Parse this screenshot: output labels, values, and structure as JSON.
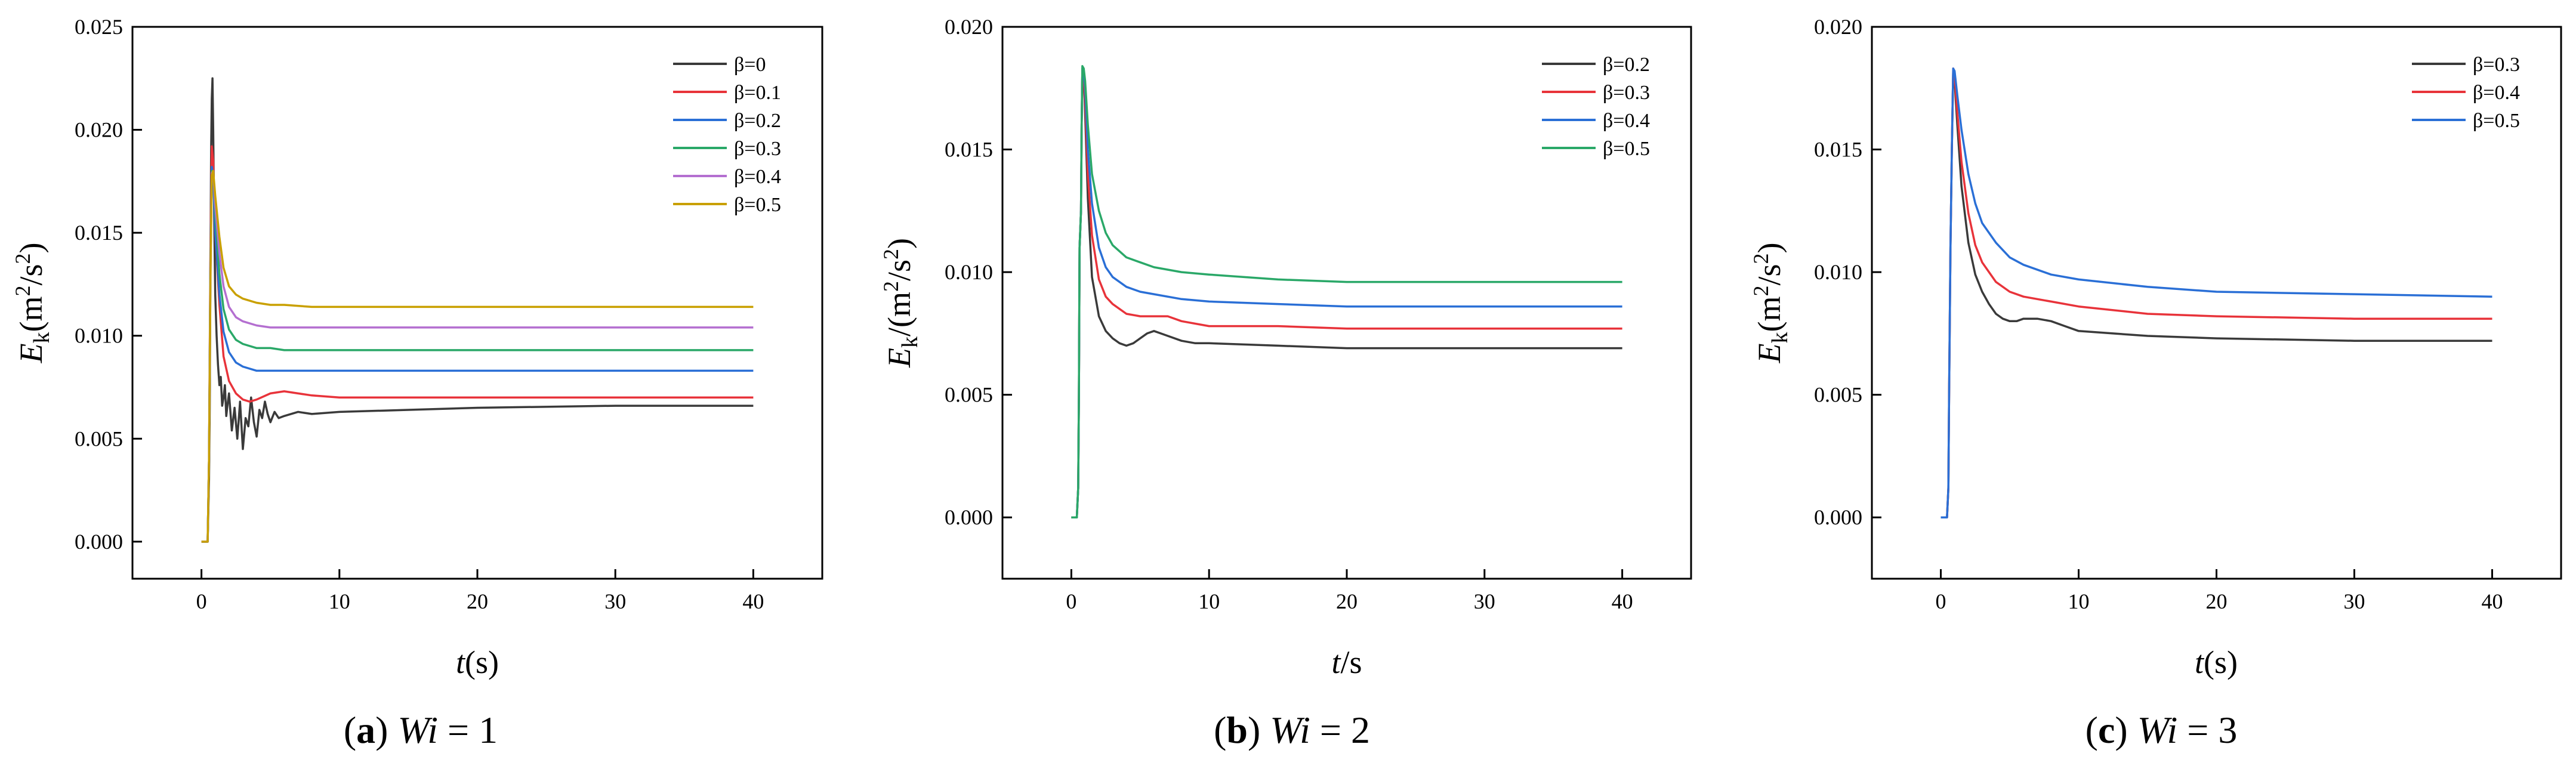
{
  "chart_data": [
    {
      "type": "line",
      "panel": "(a)",
      "caption_symbol": "Wi",
      "caption_value": "= 1",
      "xlabel_symbol": "t",
      "xlabel_rest": "(s)",
      "ylabel": "E_k(m^2/s^2)",
      "xlim": [
        -5,
        45
      ],
      "ylim": [
        -0.0018,
        0.025
      ],
      "xticks": [
        0,
        10,
        20,
        30,
        40
      ],
      "yticks": [
        0.0,
        0.005,
        0.01,
        0.015,
        0.02,
        0.025
      ],
      "ytick_labels": [
        "0.000",
        "0.005",
        "0.010",
        "0.015",
        "0.020",
        "0.025"
      ],
      "legend_position": "top-right",
      "series": [
        {
          "name": "β=0",
          "color": "#3a3a3a",
          "x": [
            0,
            0.45,
            0.55,
            0.6,
            0.65,
            0.7,
            0.75,
            0.8,
            0.85,
            0.9,
            1.0,
            1.1,
            1.2,
            1.3,
            1.4,
            1.5,
            1.6,
            1.7,
            1.8,
            1.9,
            2.0,
            2.2,
            2.4,
            2.6,
            2.8,
            3.0,
            3.2,
            3.4,
            3.6,
            3.8,
            4.0,
            4.2,
            4.4,
            4.6,
            4.8,
            5.0,
            5.3,
            5.6,
            6,
            7,
            8,
            10,
            15,
            20,
            30,
            40
          ],
          "y": [
            0,
            0,
            0.003,
            0.0065,
            0.013,
            0.019,
            0.0215,
            0.0225,
            0.02,
            0.017,
            0.012,
            0.01,
            0.0086,
            0.0076,
            0.008,
            0.0066,
            0.007,
            0.0076,
            0.0061,
            0.0067,
            0.0072,
            0.0054,
            0.0065,
            0.005,
            0.0068,
            0.0045,
            0.006,
            0.0056,
            0.007,
            0.0058,
            0.0051,
            0.0064,
            0.006,
            0.0068,
            0.0062,
            0.0058,
            0.0063,
            0.006,
            0.0061,
            0.0063,
            0.0062,
            0.0063,
            0.0064,
            0.0065,
            0.0066,
            0.0066
          ]
        },
        {
          "name": "β=0.1",
          "color": "#e8333a",
          "x": [
            0,
            0.45,
            0.55,
            0.65,
            0.75,
            0.85,
            1.0,
            1.3,
            1.6,
            2.0,
            2.5,
            3,
            3.5,
            4,
            5,
            6,
            7,
            8,
            10,
            15,
            20,
            30,
            40
          ],
          "y": [
            0,
            0,
            0.004,
            0.014,
            0.0192,
            0.0185,
            0.015,
            0.0115,
            0.009,
            0.0078,
            0.0072,
            0.0069,
            0.0068,
            0.0069,
            0.0072,
            0.0073,
            0.0072,
            0.0071,
            0.007,
            0.007,
            0.007,
            0.007,
            0.007
          ]
        },
        {
          "name": "β=0.2",
          "color": "#2a6fd6",
          "x": [
            0,
            0.45,
            0.55,
            0.65,
            0.75,
            0.85,
            1.0,
            1.3,
            1.6,
            2.0,
            2.5,
            3,
            4,
            5,
            6,
            8,
            10,
            15,
            20,
            30,
            40
          ],
          "y": [
            0,
            0,
            0.004,
            0.0135,
            0.0182,
            0.0178,
            0.015,
            0.012,
            0.0102,
            0.0092,
            0.0087,
            0.0085,
            0.0083,
            0.0083,
            0.0083,
            0.0083,
            0.0083,
            0.0083,
            0.0083,
            0.0083,
            0.0083
          ]
        },
        {
          "name": "β=0.3",
          "color": "#2aa868",
          "x": [
            0,
            0.45,
            0.55,
            0.65,
            0.75,
            0.85,
            1.0,
            1.3,
            1.6,
            2.0,
            2.5,
            3,
            4,
            5,
            6,
            8,
            10,
            15,
            20,
            30,
            40
          ],
          "y": [
            0,
            0,
            0.004,
            0.013,
            0.018,
            0.018,
            0.016,
            0.013,
            0.0113,
            0.0103,
            0.0098,
            0.0096,
            0.0094,
            0.0094,
            0.0093,
            0.0093,
            0.0093,
            0.0093,
            0.0093,
            0.0093,
            0.0093
          ]
        },
        {
          "name": "β=0.4",
          "color": "#b46fd0",
          "x": [
            0,
            0.45,
            0.55,
            0.65,
            0.75,
            0.85,
            1.0,
            1.3,
            1.6,
            2.0,
            2.5,
            3,
            4,
            5,
            6,
            8,
            10,
            15,
            20,
            30,
            40
          ],
          "y": [
            0,
            0,
            0.004,
            0.0128,
            0.0179,
            0.018,
            0.0163,
            0.014,
            0.0124,
            0.0114,
            0.0109,
            0.0107,
            0.0105,
            0.0104,
            0.0104,
            0.0104,
            0.0104,
            0.0104,
            0.0104,
            0.0104,
            0.0104
          ]
        },
        {
          "name": "β=0.5",
          "color": "#c9a000",
          "x": [
            0,
            0.45,
            0.55,
            0.65,
            0.75,
            0.85,
            1.0,
            1.3,
            1.6,
            2.0,
            2.5,
            3,
            4,
            5,
            6,
            8,
            10,
            15,
            20,
            30,
            40
          ],
          "y": [
            0,
            0,
            0.004,
            0.0125,
            0.0178,
            0.018,
            0.0168,
            0.0148,
            0.0133,
            0.0124,
            0.012,
            0.0118,
            0.0116,
            0.0115,
            0.0115,
            0.0114,
            0.0114,
            0.0114,
            0.0114,
            0.0114,
            0.0114
          ]
        }
      ]
    },
    {
      "type": "line",
      "panel": "(b)",
      "caption_symbol": "Wi",
      "caption_value": "= 2",
      "xlabel_symbol": "t",
      "xlabel_rest": "/s",
      "ylabel": "E_k/(m^2/s^2)",
      "xlim": [
        -5,
        45
      ],
      "ylim": [
        -0.0025,
        0.02
      ],
      "xticks": [
        0,
        10,
        20,
        30,
        40
      ],
      "yticks": [
        0.0,
        0.005,
        0.01,
        0.015,
        0.02
      ],
      "ytick_labels": [
        "0.000",
        "0.005",
        "0.010",
        "0.015",
        "0.020"
      ],
      "legend_position": "top-right",
      "series": [
        {
          "name": "β=0.2",
          "color": "#3a3a3a",
          "x": [
            0,
            0.4,
            0.5,
            0.55,
            0.6,
            0.7,
            0.75,
            0.8,
            0.9,
            1.0,
            1.2,
            1.5,
            2.0,
            2.5,
            3,
            3.5,
            4,
            4.5,
            5,
            5.5,
            6,
            6.5,
            7,
            8,
            9,
            10,
            15,
            20,
            30,
            40
          ],
          "y": [
            0,
            0,
            0.0012,
            0.005,
            0.011,
            0.0125,
            0.016,
            0.0183,
            0.018,
            0.0165,
            0.013,
            0.0098,
            0.0082,
            0.0076,
            0.0073,
            0.0071,
            0.007,
            0.0071,
            0.0073,
            0.0075,
            0.0076,
            0.0075,
            0.0074,
            0.0072,
            0.0071,
            0.0071,
            0.007,
            0.0069,
            0.0069,
            0.0069
          ]
        },
        {
          "name": "β=0.3",
          "color": "#e8333a",
          "x": [
            0,
            0.4,
            0.5,
            0.55,
            0.6,
            0.7,
            0.75,
            0.8,
            0.9,
            1.0,
            1.2,
            1.5,
            2.0,
            2.5,
            3,
            4,
            5,
            6,
            7,
            8,
            10,
            15,
            20,
            30,
            40
          ],
          "y": [
            0,
            0,
            0.0012,
            0.005,
            0.011,
            0.0125,
            0.016,
            0.0183,
            0.0181,
            0.017,
            0.014,
            0.0115,
            0.0097,
            0.009,
            0.0087,
            0.0083,
            0.0082,
            0.0082,
            0.0082,
            0.008,
            0.0078,
            0.0078,
            0.0077,
            0.0077,
            0.0077
          ]
        },
        {
          "name": "β=0.4",
          "color": "#2a6fd6",
          "x": [
            0,
            0.4,
            0.5,
            0.55,
            0.6,
            0.7,
            0.75,
            0.8,
            0.9,
            1.0,
            1.2,
            1.5,
            2.0,
            2.5,
            3,
            4,
            5,
            6,
            8,
            10,
            15,
            20,
            30,
            40
          ],
          "y": [
            0,
            0,
            0.0012,
            0.005,
            0.011,
            0.0125,
            0.016,
            0.0183,
            0.0182,
            0.0175,
            0.015,
            0.0128,
            0.011,
            0.0102,
            0.0098,
            0.0094,
            0.0092,
            0.0091,
            0.0089,
            0.0088,
            0.0087,
            0.0086,
            0.0086,
            0.0086
          ]
        },
        {
          "name": "β=0.5",
          "color": "#2aa868",
          "x": [
            0,
            0.4,
            0.5,
            0.55,
            0.6,
            0.7,
            0.75,
            0.8,
            0.9,
            1.0,
            1.2,
            1.5,
            2.0,
            2.5,
            3,
            4,
            5,
            6,
            8,
            10,
            15,
            20,
            30,
            40
          ],
          "y": [
            0,
            0,
            0.0012,
            0.005,
            0.011,
            0.0125,
            0.016,
            0.0184,
            0.0183,
            0.0178,
            0.016,
            0.014,
            0.0125,
            0.0116,
            0.0111,
            0.0106,
            0.0104,
            0.0102,
            0.01,
            0.0099,
            0.0097,
            0.0096,
            0.0096,
            0.0096
          ]
        }
      ]
    },
    {
      "type": "line",
      "panel": "(c)",
      "caption_symbol": "Wi",
      "caption_value": "= 3",
      "xlabel_symbol": "t",
      "xlabel_rest": "(s)",
      "ylabel": "E_k(m^2/s^2)",
      "xlim": [
        -5,
        45
      ],
      "ylim": [
        -0.0025,
        0.02
      ],
      "xticks": [
        0,
        10,
        20,
        30,
        40
      ],
      "yticks": [
        0.0,
        0.005,
        0.01,
        0.015,
        0.02
      ],
      "ytick_labels": [
        "0.000",
        "0.005",
        "0.010",
        "0.015",
        "0.020"
      ],
      "legend_position": "top-right",
      "series": [
        {
          "name": "β=0.3",
          "color": "#3a3a3a",
          "x": [
            0,
            0.45,
            0.55,
            0.6,
            0.7,
            0.8,
            0.9,
            1.0,
            1.2,
            1.5,
            2.0,
            2.5,
            3,
            3.5,
            4,
            4.5,
            5,
            5.5,
            6,
            6.5,
            7,
            8,
            9,
            10,
            15,
            20,
            30,
            40
          ],
          "y": [
            0,
            0,
            0.0012,
            0.005,
            0.011,
            0.015,
            0.0182,
            0.0178,
            0.016,
            0.0135,
            0.0112,
            0.0099,
            0.0092,
            0.0087,
            0.0083,
            0.0081,
            0.008,
            0.008,
            0.0081,
            0.0081,
            0.0081,
            0.008,
            0.0078,
            0.0076,
            0.0074,
            0.0073,
            0.0072,
            0.0072
          ]
        },
        {
          "name": "β=0.4",
          "color": "#e8333a",
          "x": [
            0,
            0.45,
            0.55,
            0.6,
            0.7,
            0.8,
            0.9,
            1.0,
            1.2,
            1.5,
            2.0,
            2.5,
            3,
            4,
            5,
            6,
            8,
            10,
            15,
            20,
            30,
            40
          ],
          "y": [
            0,
            0,
            0.0012,
            0.005,
            0.011,
            0.015,
            0.0183,
            0.018,
            0.0165,
            0.0145,
            0.0124,
            0.0111,
            0.0104,
            0.0096,
            0.0092,
            0.009,
            0.0088,
            0.0086,
            0.0083,
            0.0082,
            0.0081,
            0.0081
          ]
        },
        {
          "name": "β=0.5",
          "color": "#2a6fd6",
          "x": [
            0,
            0.45,
            0.55,
            0.6,
            0.7,
            0.8,
            0.9,
            1.0,
            1.2,
            1.5,
            2.0,
            2.5,
            3,
            4,
            5,
            6,
            8,
            10,
            15,
            20,
            30,
            40
          ],
          "y": [
            0,
            0,
            0.0012,
            0.005,
            0.011,
            0.015,
            0.0183,
            0.0182,
            0.0172,
            0.0158,
            0.014,
            0.0128,
            0.012,
            0.0112,
            0.0106,
            0.0103,
            0.0099,
            0.0097,
            0.0094,
            0.0092,
            0.0091,
            0.009
          ]
        }
      ]
    }
  ]
}
